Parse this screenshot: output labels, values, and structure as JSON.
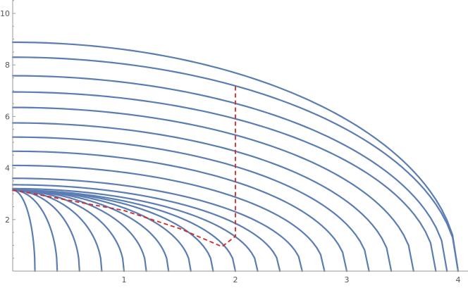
{
  "chart_data": {
    "type": "line",
    "title": "",
    "xlabel": "",
    "ylabel": "",
    "xlim": [
      0,
      4.06
    ],
    "ylim": [
      0,
      10.6
    ],
    "x_ticks": [
      1,
      2,
      3,
      4
    ],
    "y_ticks": [
      2,
      4,
      6,
      8,
      10
    ],
    "x_tick_labels": [
      "1",
      "2",
      "3",
      "4"
    ],
    "y_tick_labels": [
      "2",
      "4",
      "6",
      "8",
      "10"
    ],
    "grid": false,
    "legend": "none",
    "colors": {
      "curves": "#5b7db3",
      "path": "#d62728",
      "axis": "#999999"
    },
    "curve_family": {
      "description_of_shape": "elliptic arcs y = y0 * sqrt(1 - (x/a)^2)",
      "series": [
        {
          "a": 0.2,
          "y0": 3.14
        },
        {
          "a": 0.4,
          "y0": 3.14
        },
        {
          "a": 0.6,
          "y0": 3.14
        },
        {
          "a": 0.8,
          "y0": 3.14
        },
        {
          "a": 1.0,
          "y0": 3.14
        },
        {
          "a": 1.2,
          "y0": 3.14
        },
        {
          "a": 1.4,
          "y0": 3.14
        },
        {
          "a": 1.6,
          "y0": 3.14
        },
        {
          "a": 1.8,
          "y0": 3.14
        },
        {
          "a": 2.0,
          "y0": 3.14
        },
        {
          "a": 2.2,
          "y0": 3.2
        },
        {
          "a": 2.4,
          "y0": 3.35
        },
        {
          "a": 2.6,
          "y0": 3.6
        },
        {
          "a": 2.8,
          "y0": 4.1
        },
        {
          "a": 3.0,
          "y0": 4.65
        },
        {
          "a": 3.2,
          "y0": 5.2
        },
        {
          "a": 3.4,
          "y0": 5.75
        },
        {
          "a": 3.6,
          "y0": 6.35
        },
        {
          "a": 3.8,
          "y0": 6.95
        },
        {
          "a": 3.9,
          "y0": 7.58
        },
        {
          "a": 4.0,
          "y0": 8.3
        },
        {
          "a": 4.0,
          "y0": 8.88
        }
      ]
    },
    "dashed_path": {
      "points": [
        [
          0.0,
          3.15
        ],
        [
          1.0,
          2.35
        ],
        [
          1.5,
          1.65
        ],
        [
          1.88,
          0.95
        ],
        [
          2.0,
          1.35
        ],
        [
          2.0,
          7.25
        ]
      ]
    }
  }
}
